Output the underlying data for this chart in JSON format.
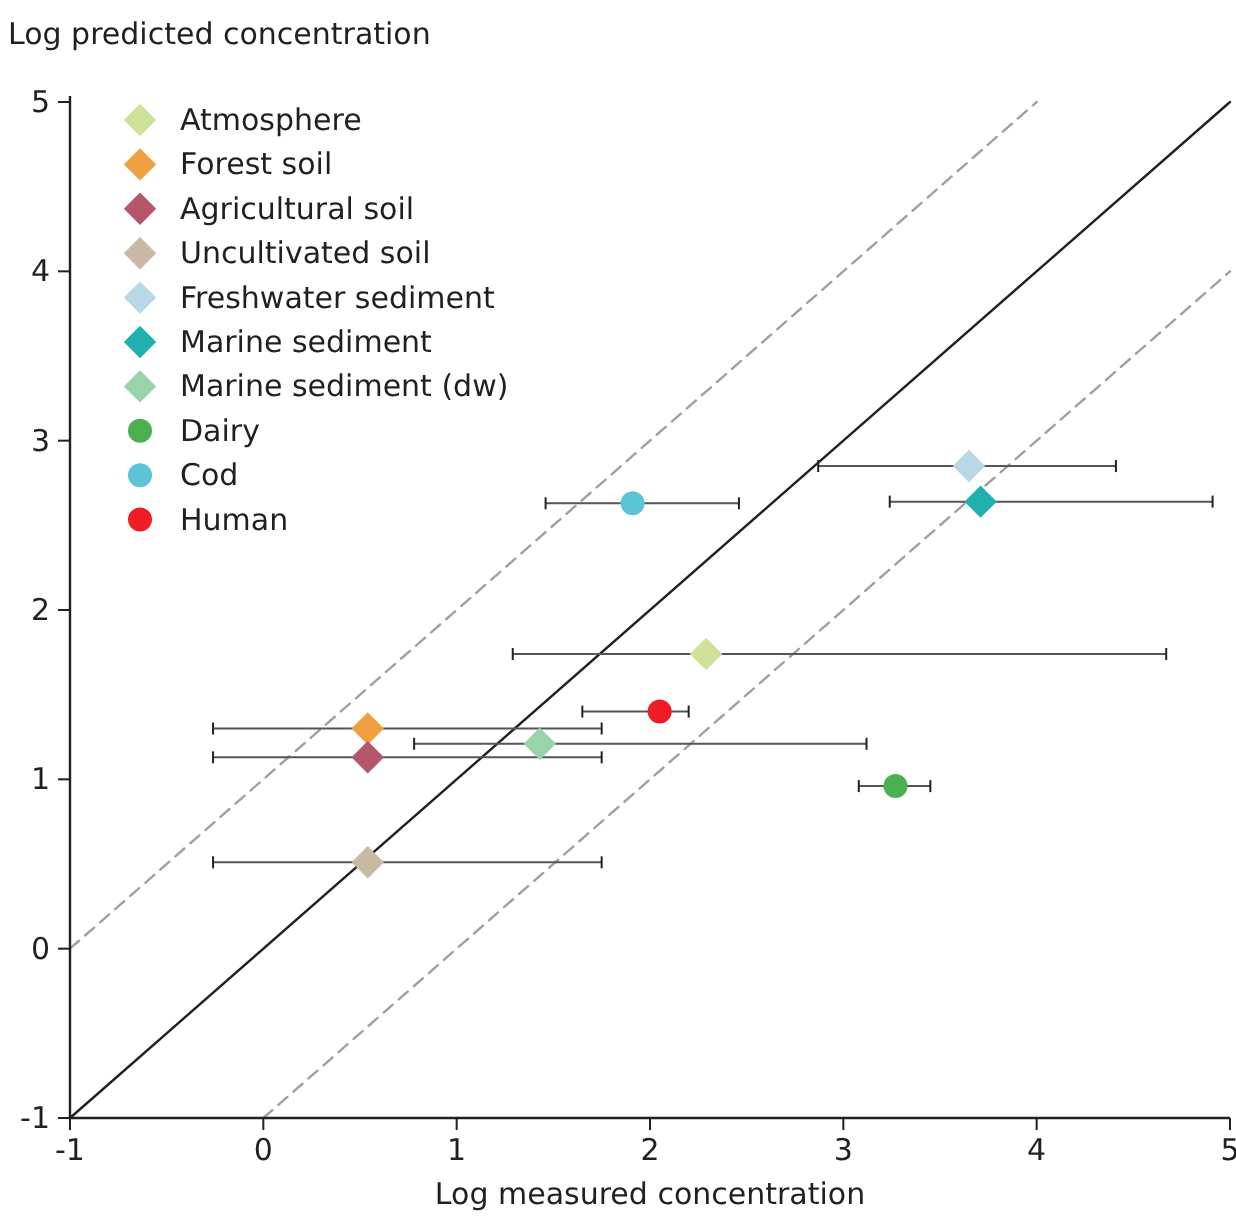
{
  "chart_data": {
    "type": "scatter",
    "xlabel": "Log measured concentration",
    "ylabel": "Log predicted concentration",
    "xlim": [
      -1,
      5
    ],
    "ylim": [
      -1,
      5
    ],
    "xticks": [
      -1,
      0,
      1,
      2,
      3,
      4,
      5
    ],
    "yticks": [
      -1,
      0,
      1,
      2,
      3,
      4,
      5
    ],
    "grid": false,
    "legend": "top left",
    "series": [
      {
        "name": "Atmosphere",
        "color": "#cfe29a",
        "marker": "diamond",
        "x": [
          2.29
        ],
        "values": [
          1.74
        ],
        "xerrors": [
          [
            1.29,
            4.67
          ]
        ]
      },
      {
        "name": "Forest soil",
        "color": "#f0a040",
        "marker": "diamond",
        "x": [
          0.54
        ],
        "values": [
          1.3
        ],
        "xerrors": [
          [
            -0.26,
            1.75
          ]
        ]
      },
      {
        "name": "Agricultural soil",
        "color": "#b5566a",
        "marker": "diamond",
        "x": [
          0.54
        ],
        "values": [
          1.13
        ],
        "xerrors": [
          [
            -0.26,
            1.75
          ]
        ]
      },
      {
        "name": "Uncultivated soil",
        "color": "#c8b8a4",
        "marker": "diamond",
        "x": [
          0.54
        ],
        "values": [
          0.51
        ],
        "xerrors": [
          [
            -0.26,
            1.75
          ]
        ]
      },
      {
        "name": "Freshwater sediment",
        "color": "#b8d8e8",
        "marker": "diamond",
        "x": [
          3.65
        ],
        "values": [
          2.85
        ],
        "xerrors": [
          [
            2.87,
            4.41
          ]
        ]
      },
      {
        "name": "Marine sediment",
        "color": "#20b0b0",
        "marker": "diamond",
        "x": [
          3.71
        ],
        "values": [
          2.64
        ],
        "xerrors": [
          [
            3.24,
            4.91
          ]
        ]
      },
      {
        "name": "Marine sediment (dw)",
        "color": "#98d4a8",
        "marker": "diamond",
        "x": [
          1.43
        ],
        "values": [
          1.21
        ],
        "xerrors": [
          [
            0.78,
            3.12
          ]
        ]
      },
      {
        "name": "Dairy",
        "color": "#4caf50",
        "marker": "circle",
        "x": [
          3.27
        ],
        "values": [
          0.96
        ],
        "xerrors": [
          [
            3.08,
            3.45
          ]
        ]
      },
      {
        "name": "Cod",
        "color": "#5bc5d5",
        "marker": "circle",
        "x": [
          1.91
        ],
        "values": [
          2.63
        ],
        "xerrors": [
          [
            1.46,
            2.46
          ]
        ]
      },
      {
        "name": "Human",
        "color": "#ee1c25",
        "marker": "circle",
        "x": [
          2.05
        ],
        "values": [
          1.4
        ],
        "xerrors": [
          [
            1.65,
            2.2
          ]
        ]
      },
      {
        "type": "line",
        "color": "#231f20",
        "line_style": "solid",
        "x": [
          -1,
          5
        ],
        "values": [
          -1,
          5
        ]
      },
      {
        "type": "line",
        "color": "#a0a0a0",
        "line_style": "dashed",
        "x": [
          -1,
          4
        ],
        "values": [
          0,
          5
        ]
      },
      {
        "type": "line",
        "color": "#a0a0a0",
        "line_style": "dashed",
        "x": [
          0,
          5
        ],
        "values": [
          -1,
          4
        ]
      }
    ]
  }
}
